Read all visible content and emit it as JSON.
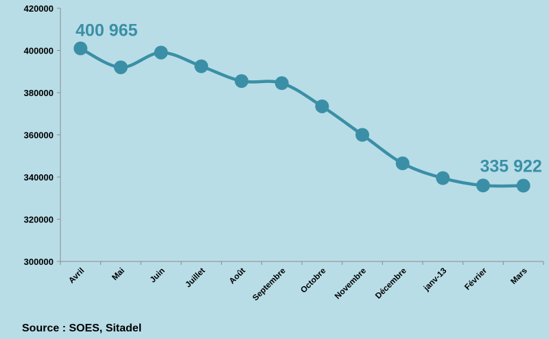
{
  "chart_data": {
    "type": "line",
    "categories": [
      "Avril",
      "Mai",
      "Juin",
      "Juillet",
      "Août",
      "Septembre",
      "Octobre",
      "Novembre",
      "Décembre",
      "janv-13",
      "Février",
      "Mars"
    ],
    "values": [
      400965,
      392000,
      399000,
      392500,
      385500,
      384500,
      373500,
      360000,
      346500,
      339500,
      336000,
      335922
    ],
    "yticks": [
      "300000",
      "320000",
      "340000",
      "360000",
      "380000",
      "400000",
      "420000"
    ],
    "ylim": [
      300000,
      420000
    ],
    "annotations": [
      {
        "text": "400 965",
        "index": 0
      },
      {
        "text": "335 922",
        "index": 11
      }
    ],
    "line_color": "#3a8fa6",
    "grid": false
  },
  "source": "Source : SOES,  Sitadel"
}
